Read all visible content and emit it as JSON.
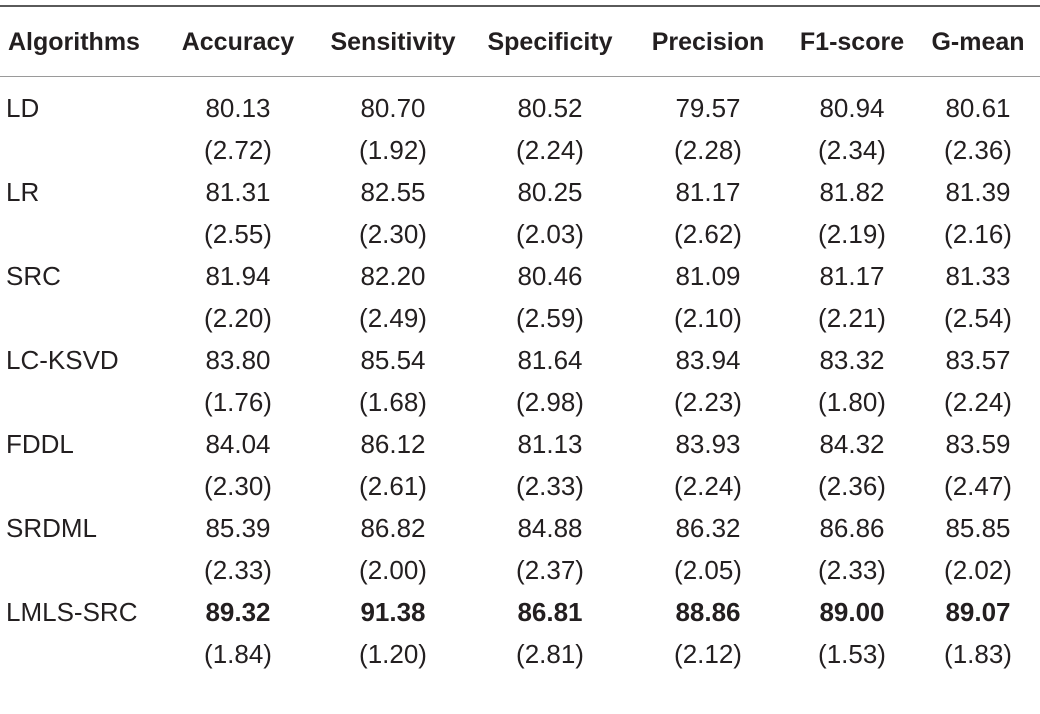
{
  "table": {
    "headers": [
      "Algorithms",
      "Accuracy",
      "Sensitivity",
      "Specificity",
      "Precision",
      "F1-score",
      "G-mean"
    ],
    "rows": [
      {
        "name": "LD",
        "values": [
          "80.13",
          "80.70",
          "80.52",
          "79.57",
          "80.94",
          "80.61"
        ],
        "sd": [
          "(2.72)",
          "(1.92)",
          "(2.24)",
          "(2.28)",
          "(2.34)",
          "(2.36)"
        ]
      },
      {
        "name": "LR",
        "values": [
          "81.31",
          "82.55",
          "80.25",
          "81.17",
          "81.82",
          "81.39"
        ],
        "sd": [
          "(2.55)",
          "(2.30)",
          "(2.03)",
          "(2.62)",
          "(2.19)",
          "(2.16)"
        ]
      },
      {
        "name": "SRC",
        "values": [
          "81.94",
          "82.20",
          "80.46",
          "81.09",
          "81.17",
          "81.33"
        ],
        "sd": [
          "(2.20)",
          "(2.49)",
          "(2.59)",
          "(2.10)",
          "(2.21)",
          "(2.54)"
        ]
      },
      {
        "name": "LC-KSVD",
        "values": [
          "83.80",
          "85.54",
          "81.64",
          "83.94",
          "83.32",
          "83.57"
        ],
        "sd": [
          "(1.76)",
          "(1.68)",
          "(2.98)",
          "(2.23)",
          "(1.80)",
          "(2.24)"
        ]
      },
      {
        "name": "FDDL",
        "values": [
          "84.04",
          "86.12",
          "81.13",
          "83.93",
          "84.32",
          "83.59"
        ],
        "sd": [
          "(2.30)",
          "(2.61)",
          "(2.33)",
          "(2.24)",
          "(2.36)",
          "(2.47)"
        ]
      },
      {
        "name": "SRDML",
        "values": [
          "85.39",
          "86.82",
          "84.88",
          "86.32",
          "86.86",
          "85.85"
        ],
        "sd": [
          "(2.33)",
          "(2.00)",
          "(2.37)",
          "(2.05)",
          "(2.33)",
          "(2.02)"
        ]
      },
      {
        "name": "LMLS-SRC",
        "values": [
          "89.32",
          "91.38",
          "86.81",
          "88.86",
          "89.00",
          "89.07"
        ],
        "sd": [
          "(1.84)",
          "(1.20)",
          "(2.81)",
          "(2.12)",
          "(1.53)",
          "(1.83)"
        ],
        "bold": true
      }
    ]
  }
}
